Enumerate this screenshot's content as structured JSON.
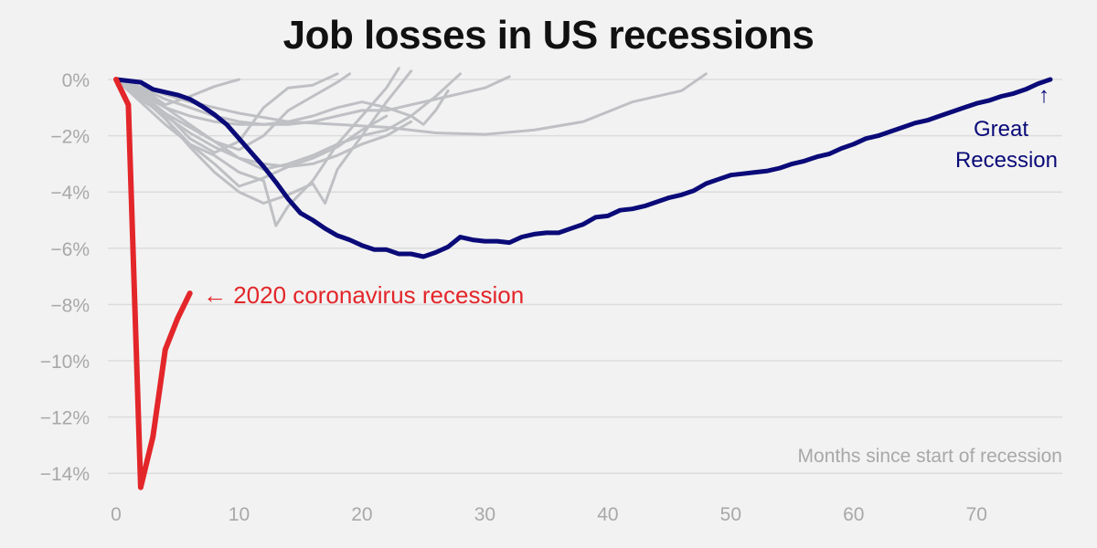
{
  "chart_data": {
    "type": "line",
    "title": "Job losses in US recessions",
    "xlabel": "Months since start of recession",
    "ylabel": "",
    "xlim": [
      0,
      77
    ],
    "ylim": [
      -14.6,
      0.2
    ],
    "x_ticks": [
      0,
      10,
      20,
      30,
      40,
      50,
      60,
      70
    ],
    "x_tick_labels": [
      "0",
      "10",
      "20",
      "30",
      "40",
      "50",
      "60",
      "70"
    ],
    "y_ticks": [
      0,
      -2,
      -4,
      -6,
      -8,
      -10,
      -12,
      -14
    ],
    "y_tick_labels": [
      "0%",
      "−2%",
      "−4%",
      "−6%",
      "−8%",
      "−10%",
      "−12%",
      "−14%"
    ],
    "grid": true,
    "colors": {
      "highlight_red": "#e3262a",
      "highlight_navy": "#0a0a78",
      "other": "#bfc0c4",
      "grid": "#dcdcdc"
    },
    "annotations": {
      "coronavirus": "← 2020 coronavirus recession",
      "great_recession_arrow": "↑",
      "great_recession_line1": "Great",
      "great_recession_line2": "Recession"
    },
    "series": [
      {
        "name": "2020 coronavirus recession",
        "color": "#e3262a",
        "x": [
          0,
          1,
          2,
          3,
          4,
          5,
          6
        ],
        "values": [
          0,
          -0.9,
          -14.5,
          -12.7,
          -9.6,
          -8.5,
          -7.6
        ]
      },
      {
        "name": "Great Recession",
        "color": "#0a0a78",
        "x": [
          0,
          1,
          2,
          3,
          4,
          5,
          6,
          7,
          8,
          9,
          10,
          11,
          12,
          13,
          14,
          15,
          16,
          17,
          18,
          19,
          20,
          21,
          22,
          23,
          24,
          25,
          26,
          27,
          28,
          29,
          30,
          31,
          32,
          33,
          34,
          35,
          36,
          37,
          38,
          39,
          40,
          41,
          42,
          43,
          44,
          45,
          46,
          47,
          48,
          49,
          50,
          51,
          52,
          53,
          54,
          55,
          56,
          57,
          58,
          59,
          60,
          61,
          62,
          63,
          64,
          65,
          66,
          67,
          68,
          69,
          70,
          71,
          72,
          73,
          74,
          75,
          76
        ],
        "values": [
          0,
          -0.05,
          -0.1,
          -0.35,
          -0.45,
          -0.55,
          -0.7,
          -0.95,
          -1.25,
          -1.6,
          -2.1,
          -2.6,
          -3.1,
          -3.65,
          -4.25,
          -4.75,
          -5.0,
          -5.3,
          -5.55,
          -5.7,
          -5.9,
          -6.05,
          -6.05,
          -6.2,
          -6.2,
          -6.3,
          -6.15,
          -5.95,
          -5.6,
          -5.7,
          -5.75,
          -5.75,
          -5.8,
          -5.6,
          -5.5,
          -5.45,
          -5.45,
          -5.3,
          -5.15,
          -4.9,
          -4.85,
          -4.65,
          -4.6,
          -4.5,
          -4.35,
          -4.2,
          -4.1,
          -3.95,
          -3.7,
          -3.55,
          -3.4,
          -3.35,
          -3.3,
          -3.25,
          -3.15,
          -3.0,
          -2.9,
          -2.75,
          -2.65,
          -2.45,
          -2.3,
          -2.1,
          -2.0,
          -1.85,
          -1.7,
          -1.55,
          -1.45,
          -1.3,
          -1.15,
          -1.0,
          -0.85,
          -0.75,
          -0.6,
          -0.5,
          -0.35,
          -0.15,
          0.0
        ]
      },
      {
        "x": [
          0,
          2,
          4,
          6,
          8,
          10
        ],
        "values": [
          0,
          -0.3,
          -0.9,
          -0.6,
          -0.25,
          0.0
        ]
      },
      {
        "x": [
          0,
          2,
          4,
          6,
          8,
          10,
          12,
          14,
          16,
          18
        ],
        "values": [
          0,
          -0.5,
          -1.2,
          -2.1,
          -2.6,
          -2.2,
          -1.0,
          -0.3,
          -0.2,
          0.2
        ]
      },
      {
        "x": [
          0,
          2,
          4,
          6,
          8,
          10,
          12,
          14,
          16,
          17,
          18,
          20,
          22,
          24
        ],
        "values": [
          0,
          -0.6,
          -1.4,
          -2.4,
          -3.3,
          -4.0,
          -4.4,
          -4.1,
          -3.7,
          -4.4,
          -3.2,
          -2.0,
          -0.8,
          0.3
        ]
      },
      {
        "x": [
          0,
          2,
          4,
          6,
          8,
          10,
          12,
          13,
          14,
          16,
          18,
          20,
          22,
          23
        ],
        "values": [
          0,
          -0.8,
          -1.6,
          -2.3,
          -2.7,
          -3.3,
          -3.6,
          -5.2,
          -4.5,
          -3.6,
          -2.3,
          -1.3,
          -0.3,
          0.4
        ]
      },
      {
        "x": [
          0,
          2,
          4,
          6,
          8,
          10,
          12,
          14,
          16,
          18,
          19
        ],
        "values": [
          0,
          -0.6,
          -1.2,
          -1.7,
          -2.2,
          -2.5,
          -2.0,
          -1.1,
          -0.6,
          -0.1,
          0.2
        ]
      },
      {
        "x": [
          0,
          2,
          4,
          6,
          8,
          10,
          12,
          14,
          16,
          18,
          20,
          22,
          24,
          26,
          27,
          28
        ],
        "values": [
          0,
          -0.4,
          -1.0,
          -1.6,
          -2.2,
          -2.8,
          -3.2,
          -3.0,
          -2.7,
          -2.3,
          -2.0,
          -1.8,
          -1.3,
          -0.6,
          -0.2,
          0.2
        ]
      },
      {
        "x": [
          0,
          2,
          4,
          6,
          8,
          10,
          12,
          14,
          16,
          18,
          20,
          22,
          24,
          26,
          28,
          30,
          32
        ],
        "values": [
          0,
          -0.3,
          -0.7,
          -1.0,
          -1.3,
          -1.5,
          -1.6,
          -1.6,
          -1.5,
          -1.3,
          -1.1,
          -1.1,
          -0.9,
          -0.7,
          -0.5,
          -0.3,
          0.1
        ]
      },
      {
        "x": [
          0,
          3,
          6,
          10,
          14,
          18,
          22,
          26,
          30,
          34,
          38,
          42,
          46,
          48
        ],
        "values": [
          0,
          -0.4,
          -0.8,
          -1.2,
          -1.5,
          -1.6,
          -1.7,
          -1.9,
          -1.95,
          -1.8,
          -1.5,
          -0.8,
          -0.4,
          0.2
        ]
      },
      {
        "x": [
          0,
          2,
          4,
          6,
          8,
          10,
          12,
          14,
          16,
          18,
          20,
          22,
          24,
          25,
          26,
          27
        ],
        "values": [
          0,
          -0.5,
          -1.0,
          -1.3,
          -1.5,
          -1.6,
          -1.6,
          -1.5,
          -1.3,
          -1.0,
          -0.8,
          -1.0,
          -1.3,
          -1.6,
          -1.1,
          -0.4
        ]
      },
      {
        "x": [
          0,
          2,
          4,
          6,
          8,
          10,
          12,
          14,
          16,
          18,
          20,
          22
        ],
        "values": [
          0,
          -0.6,
          -1.4,
          -2.3,
          -3.0,
          -3.8,
          -3.5,
          -3.1,
          -2.8,
          -2.4,
          -1.8,
          -1.3
        ]
      },
      {
        "x": [
          0,
          2,
          4,
          6,
          8,
          10,
          12,
          14,
          16,
          18,
          20,
          22,
          24
        ],
        "values": [
          0,
          -0.7,
          -1.3,
          -1.9,
          -2.4,
          -2.8,
          -3.0,
          -3.1,
          -3.0,
          -2.7,
          -2.3,
          -2.0,
          -1.5
        ]
      }
    ]
  }
}
